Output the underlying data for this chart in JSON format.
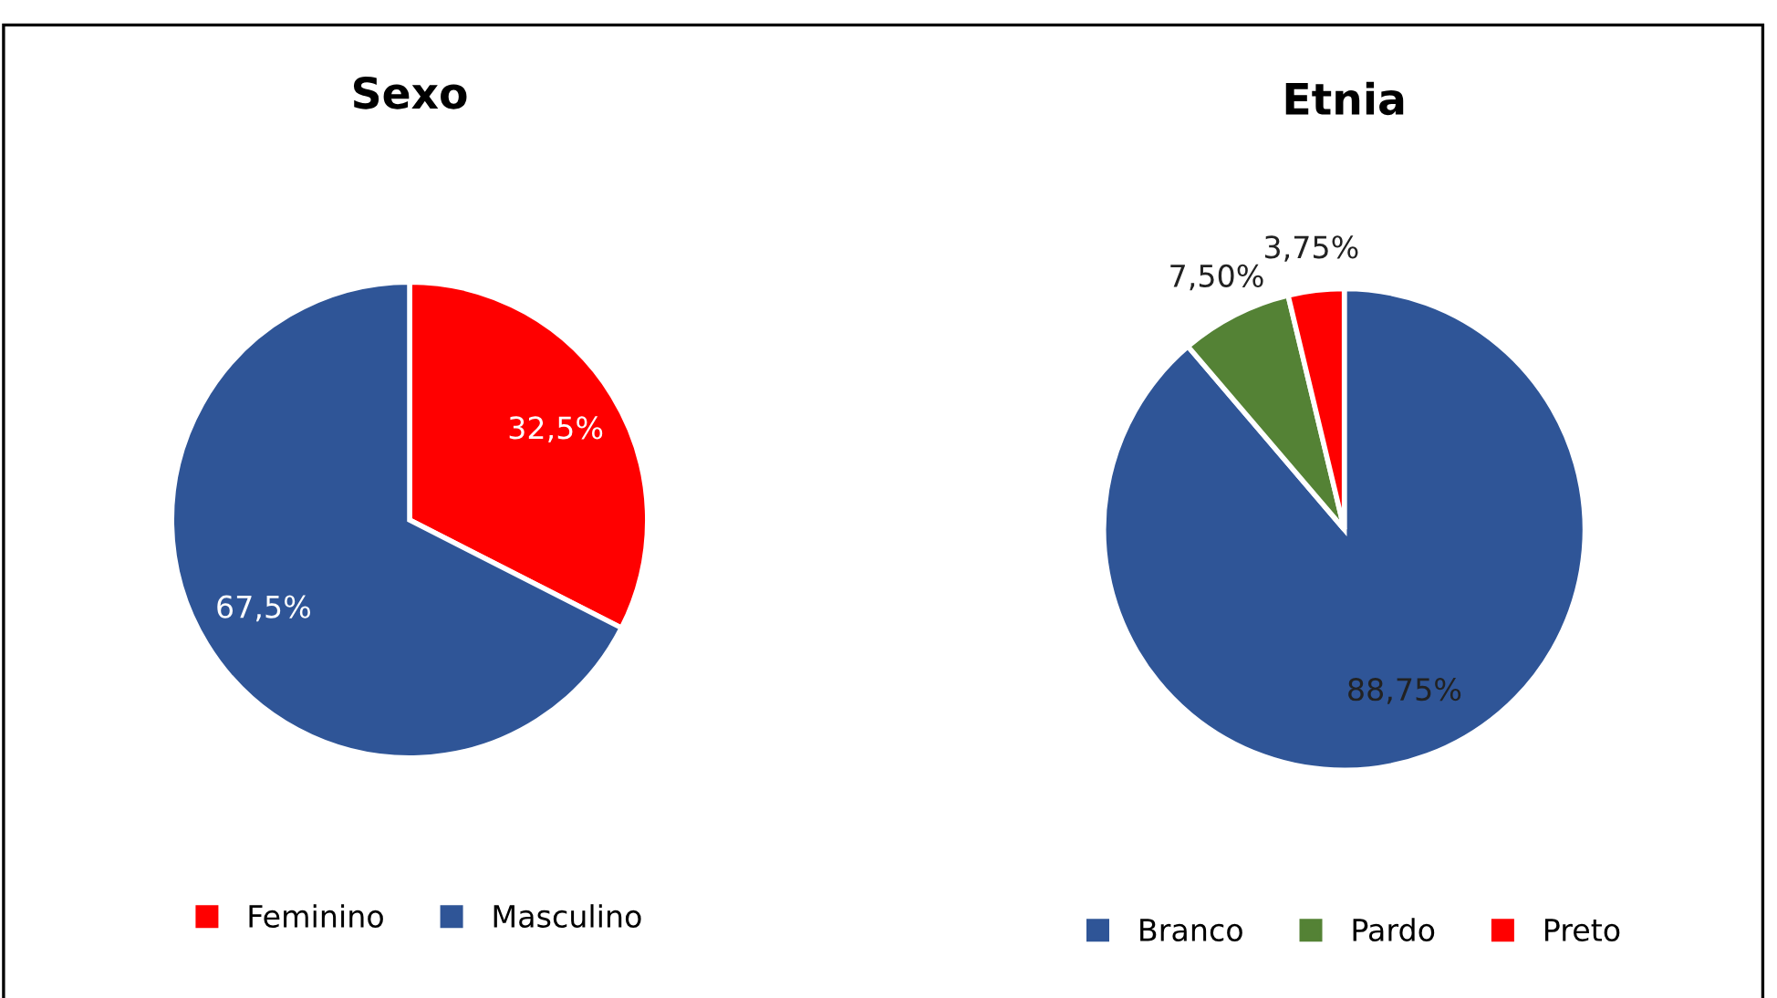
{
  "chart_data": [
    {
      "type": "pie",
      "title": "Sexo",
      "categories": [
        "Feminino",
        "Masculino"
      ],
      "values": [
        32.5,
        67.5
      ],
      "colors": [
        "#ff0000",
        "#2f5597"
      ],
      "value_labels": [
        "32,5%",
        "67,5%"
      ],
      "legend": "bottom"
    },
    {
      "type": "pie",
      "title": "Etnia",
      "categories": [
        "Branco",
        "Pardo",
        "Preto"
      ],
      "values": [
        88.75,
        7.5,
        3.75
      ],
      "colors": [
        "#2f5597",
        "#548235",
        "#ff0000"
      ],
      "value_labels": [
        "88,75%",
        "7,50%",
        "3,75%"
      ],
      "legend": "bottom"
    }
  ]
}
